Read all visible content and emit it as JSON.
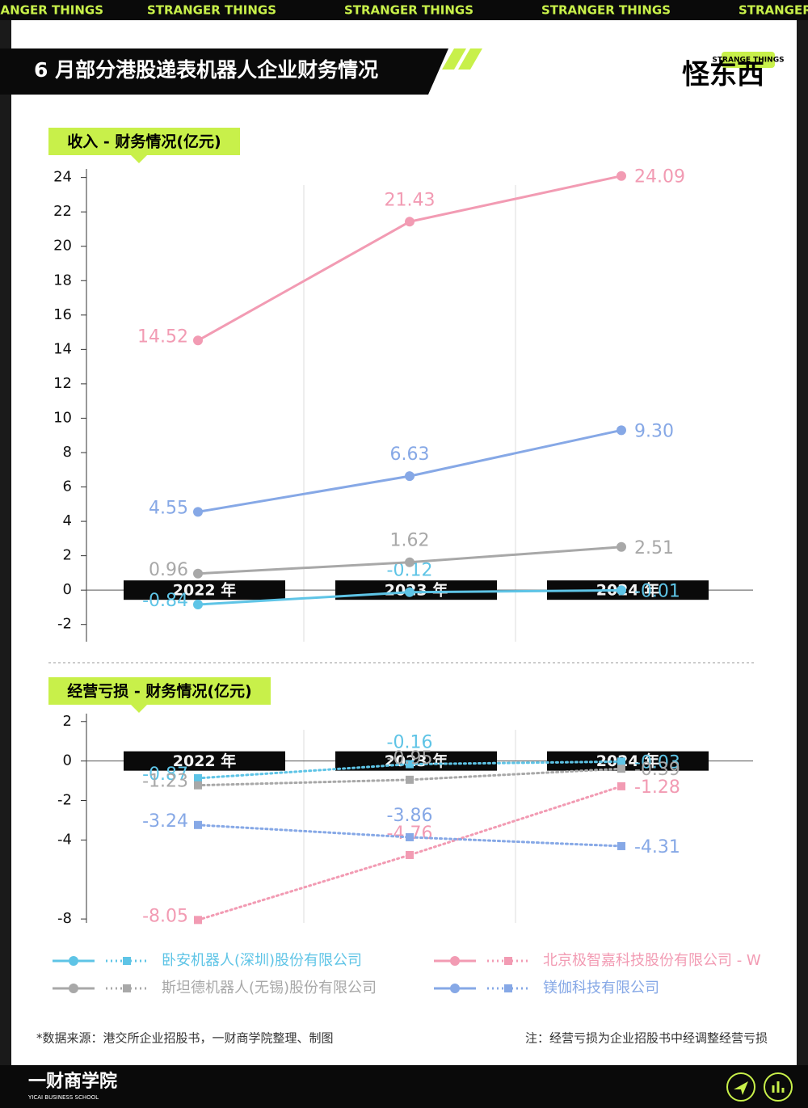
{
  "ticker": "STRANGER THINGS",
  "header": {
    "title": "6 月部分港股递表机器人企业财务情况"
  },
  "logo": {
    "small": "STRANGE THINGS",
    "main": "怪东西"
  },
  "chart_data": [
    {
      "type": "line",
      "title": "收入 - 财务情况(亿元)",
      "line_style": "solid",
      "marker": "circle",
      "categories": [
        "2022 年",
        "2023 年",
        "2024 年"
      ],
      "series": [
        {
          "name": "卧安机器人(深圳)股份有限公司",
          "color": "#5ec4e6",
          "values": [
            -0.84,
            -0.12,
            -0.01
          ]
        },
        {
          "name": "北京极智嘉科技股份有限公司 - W",
          "color": "#f29bb3",
          "values": [
            14.52,
            21.43,
            24.09
          ]
        },
        {
          "name": "斯坦德机器人(无锡)股份有限公司",
          "color": "#a8a8a8",
          "values": [
            0.96,
            1.62,
            2.51
          ]
        },
        {
          "name": "镁伽科技有限公司",
          "color": "#86a8e6",
          "values": [
            4.55,
            6.63,
            9.3
          ],
          "value_labels": [
            "4.55",
            "6.63",
            "9.30"
          ]
        }
      ],
      "ylim": [
        -3,
        24.5
      ],
      "yticks": [
        -2,
        0,
        2,
        4,
        6,
        8,
        10,
        12,
        14,
        16,
        18,
        20,
        22,
        24
      ]
    },
    {
      "type": "line",
      "title": "经营亏损 - 财务情况(亿元)",
      "line_style": "dotted",
      "marker": "square",
      "categories": [
        "2022 年",
        "2023 年",
        "2024 年"
      ],
      "series": [
        {
          "color": "#5ec4e6",
          "values": [
            -0.87,
            -0.16,
            -0.03
          ]
        },
        {
          "color": "#f29bb3",
          "values": [
            -8.05,
            -4.76,
            -1.28
          ]
        },
        {
          "color": "#a8a8a8",
          "values": [
            -1.23,
            -0.95,
            -0.39
          ]
        },
        {
          "color": "#86a8e6",
          "values": [
            -3.24,
            -3.86,
            -4.31
          ]
        }
      ],
      "ylim": [
        -8.2,
        2.4
      ],
      "yticks": [
        -8,
        -4,
        -2,
        0,
        2
      ]
    }
  ],
  "footnotes": {
    "source": "*数据来源：港交所企业招股书，一财商学院整理、制图",
    "note": "注：经营亏损为企业招股书中经调整经营亏损"
  },
  "footer": {
    "brand": "一财商学院",
    "brand_en": "YICAI BUSINESS SCHOOL"
  }
}
